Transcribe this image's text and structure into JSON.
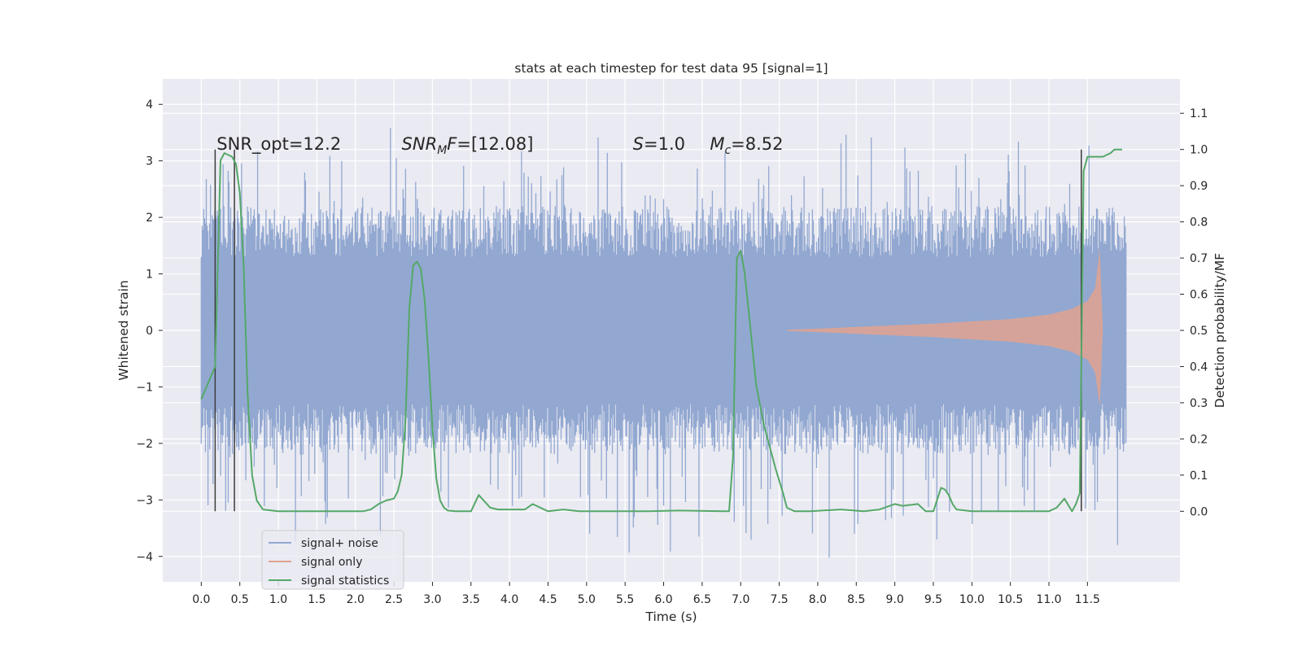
{
  "chart_data": {
    "type": "line",
    "title": "stats at each timestep for test data 95 [signal=1]",
    "xlabel": "Time (s)",
    "ylabel": "Whitened strain",
    "y2label": "Detection probability/MF",
    "xlim": [
      -0.5,
      12.7
    ],
    "ylim": [
      -4.45,
      4.45
    ],
    "y2lim": [
      -0.195,
      1.195
    ],
    "xticks": [
      0.0,
      0.5,
      1.0,
      1.5,
      2.0,
      2.5,
      3.0,
      3.5,
      4.0,
      4.5,
      5.0,
      5.5,
      6.0,
      6.5,
      7.0,
      7.5,
      8.0,
      8.5,
      9.0,
      9.5,
      10.0,
      10.5,
      11.0,
      11.5
    ],
    "xtick_labels": [
      "0.0",
      "0.5",
      "1.0",
      "1.5",
      "2.0",
      "2.5",
      "3.0",
      "3.5",
      "4.0",
      "4.5",
      "5.0",
      "5.5",
      "6.0",
      "6.5",
      "7.0",
      "7.5",
      "8.0",
      "8.5",
      "9.0",
      "9.5",
      "10.0",
      "10.5",
      "11.0",
      "11.5"
    ],
    "yticks": [
      4,
      3,
      2,
      1,
      0,
      -1,
      -2,
      -3,
      -4
    ],
    "ytick_labels": [
      "4",
      "3",
      "2",
      "1",
      "0",
      "−1",
      "−2",
      "−3",
      "−4"
    ],
    "y2ticks": [
      1.1,
      1.0,
      0.9,
      0.8,
      0.7,
      0.6,
      0.5,
      0.4,
      0.3,
      0.2,
      0.1,
      0.0
    ],
    "y2tick_labels": [
      "1.1",
      "1.0",
      "0.9",
      "0.8",
      "0.7",
      "0.6",
      "0.5",
      "0.4",
      "0.3",
      "0.2",
      "0.1",
      "0.0"
    ],
    "grid": true,
    "legend_position": "bottom-left",
    "annotations": [
      {
        "text": "SNR_opt=12.2",
        "x": 0.2,
        "y": 3.2
      },
      {
        "text": "SNR_MF=[12.08]",
        "x": 2.6,
        "y": 3.2
      },
      {
        "text": "S=1.0",
        "x": 5.6,
        "y": 3.2
      },
      {
        "text": "M_c=8.52",
        "x": 6.6,
        "y": 3.2
      }
    ],
    "vertical_markers": [
      {
        "x": 0.18,
        "y_range": [
          -3.2,
          3.2
        ]
      },
      {
        "x": 0.43,
        "y_range": [
          -3.2,
          3.2
        ]
      },
      {
        "x": 11.42,
        "y_range": [
          -3.2,
          3.2
        ]
      }
    ],
    "series": [
      {
        "name": "signal+ noise",
        "color": "#92a8d1",
        "kind": "noise_band",
        "x_range": [
          0.0,
          12.0
        ],
        "core_band": 1.3,
        "typical_peak": 2.2,
        "max": 3.6,
        "min": -4.1
      },
      {
        "name": "signal only",
        "color": "#e1a28f",
        "kind": "chirp_envelope",
        "x": [
          7.6,
          8.0,
          8.5,
          9.0,
          9.5,
          10.0,
          10.5,
          11.0,
          11.3,
          11.5,
          11.6,
          11.66,
          11.7
        ],
        "amplitude": [
          0.01,
          0.03,
          0.06,
          0.09,
          0.12,
          0.16,
          0.2,
          0.28,
          0.38,
          0.52,
          0.75,
          1.45,
          0.0
        ]
      },
      {
        "name": "signal statistics",
        "color": "#55a868",
        "axis": "right",
        "x": [
          0.0,
          0.12,
          0.18,
          0.25,
          0.3,
          0.4,
          0.45,
          0.5,
          0.55,
          0.6,
          0.66,
          0.72,
          0.8,
          1.0,
          1.5,
          2.0,
          2.1,
          2.2,
          2.3,
          2.4,
          2.5,
          2.55,
          2.6,
          2.65,
          2.7,
          2.75,
          2.8,
          2.85,
          2.9,
          2.95,
          3.0,
          3.05,
          3.1,
          3.15,
          3.2,
          3.3,
          3.5,
          3.6,
          3.75,
          3.85,
          4.0,
          4.2,
          4.3,
          4.5,
          4.7,
          4.9,
          5.3,
          5.8,
          6.2,
          6.8,
          6.85,
          6.9,
          6.95,
          7.0,
          7.05,
          7.1,
          7.2,
          7.3,
          7.45,
          7.55,
          7.6,
          7.7,
          7.9,
          8.3,
          8.6,
          8.8,
          9.0,
          9.1,
          9.3,
          9.4,
          9.5,
          9.6,
          9.65,
          9.7,
          9.75,
          9.8,
          10.0,
          10.5,
          11.0,
          11.1,
          11.2,
          11.3,
          11.35,
          11.4,
          11.45,
          11.5,
          11.55,
          11.6,
          11.7,
          11.8,
          11.85,
          11.95
        ],
        "values": [
          0.31,
          0.37,
          0.4,
          0.97,
          0.99,
          0.98,
          0.96,
          0.88,
          0.68,
          0.33,
          0.1,
          0.03,
          0.005,
          0.0,
          0.0,
          0.0,
          0.0,
          0.005,
          0.02,
          0.03,
          0.035,
          0.055,
          0.1,
          0.25,
          0.56,
          0.68,
          0.69,
          0.67,
          0.58,
          0.42,
          0.23,
          0.09,
          0.03,
          0.01,
          0.002,
          0.0,
          0.0,
          0.045,
          0.01,
          0.005,
          0.005,
          0.005,
          0.02,
          0.0,
          0.005,
          0.0,
          0.0,
          0.0,
          0.002,
          0.0,
          0.0,
          0.15,
          0.7,
          0.72,
          0.66,
          0.56,
          0.35,
          0.24,
          0.12,
          0.05,
          0.01,
          0.0,
          0.0,
          0.005,
          0.0,
          0.005,
          0.02,
          0.015,
          0.02,
          0.0,
          0.0,
          0.065,
          0.06,
          0.045,
          0.02,
          0.005,
          0.0,
          0.0,
          0.0,
          0.01,
          0.035,
          0.0,
          0.02,
          0.05,
          0.94,
          0.98,
          0.98,
          0.98,
          0.98,
          0.99,
          1.0,
          1.0
        ]
      }
    ]
  }
}
